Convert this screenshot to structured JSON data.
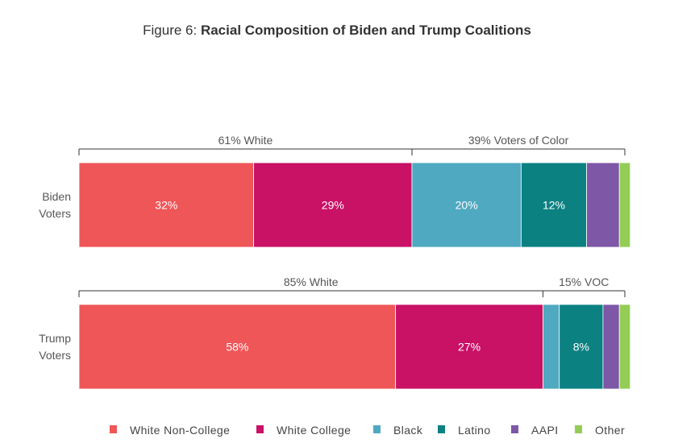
{
  "figure": {
    "prefix": "Figure 6:",
    "title": "Racial Composition of Biden and Trump Coalitions"
  },
  "chart_data": {
    "type": "bar",
    "orientation": "horizontal",
    "stacked": true,
    "xlim": [
      0,
      100
    ],
    "categories": [
      "White Non-College",
      "White College",
      "Black",
      "Latino",
      "AAPI",
      "Other"
    ],
    "colors": [
      "#ef5658",
      "#c91166",
      "#4fa9c0",
      "#0b8182",
      "#7e57a7",
      "#93cd55"
    ],
    "rows": [
      {
        "name": "Biden Voters",
        "label_lines": [
          "Biden",
          "Voters"
        ],
        "values": [
          32,
          29,
          20,
          12,
          6,
          2
        ],
        "labels": [
          "32%",
          "29%",
          "20%",
          "12%",
          "",
          ""
        ],
        "brackets": [
          {
            "start": 0,
            "end": 61,
            "label": "61% White"
          },
          {
            "start": 61,
            "end": 100,
            "label": "39% Voters of Color"
          }
        ]
      },
      {
        "name": "Trump Voters",
        "label_lines": [
          "Trump",
          "Voters"
        ],
        "values": [
          58,
          27,
          3,
          8,
          3,
          2
        ],
        "labels": [
          "58%",
          "27%",
          "",
          "8%",
          "",
          ""
        ],
        "brackets": [
          {
            "start": 0,
            "end": 85,
            "label": "85% White"
          },
          {
            "start": 85,
            "end": 100,
            "label": "15% VOC"
          }
        ]
      }
    ],
    "legend": {
      "position": "bottom",
      "entries": [
        "White Non-College",
        "White College",
        "Black",
        "Latino",
        "AAPI",
        "Other"
      ]
    }
  }
}
